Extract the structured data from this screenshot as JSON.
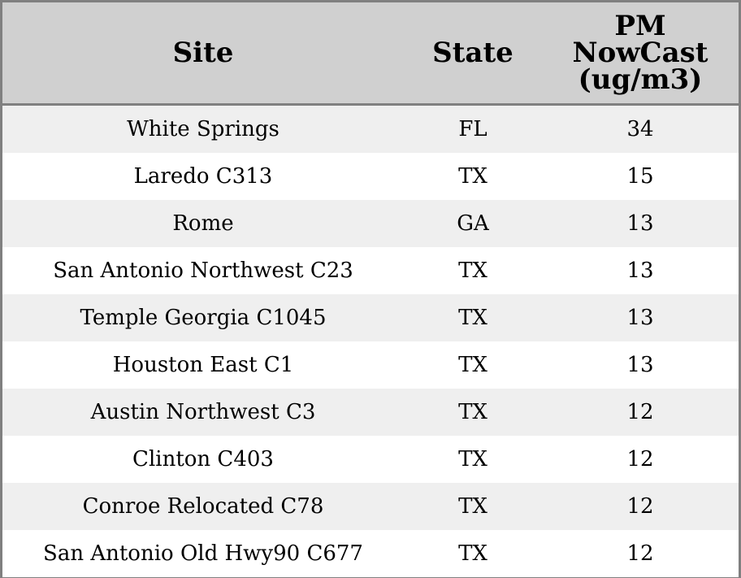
{
  "chart_data": {
    "type": "table",
    "columns": [
      "Site",
      "State",
      "PM\nNowCast\n(ug/m3)"
    ],
    "rows": [
      [
        "White Springs",
        "FL",
        "34"
      ],
      [
        "Laredo C313",
        "TX",
        "15"
      ],
      [
        "Rome",
        "GA",
        "13"
      ],
      [
        "San Antonio Northwest C23",
        "TX",
        "13"
      ],
      [
        "Temple Georgia C1045",
        "TX",
        "13"
      ],
      [
        "Houston East C1",
        "TX",
        "13"
      ],
      [
        "Austin Northwest C3",
        "TX",
        "12"
      ],
      [
        "Clinton C403",
        "TX",
        "12"
      ],
      [
        "Conroe Relocated C78",
        "TX",
        "12"
      ],
      [
        "San Antonio Old Hwy90 C677",
        "TX",
        "12"
      ]
    ]
  },
  "colors": {
    "header_bg": "#d0d0d0",
    "row_alt_bg": "#efefef",
    "row_bg": "#ffffff",
    "border": "#808080"
  }
}
